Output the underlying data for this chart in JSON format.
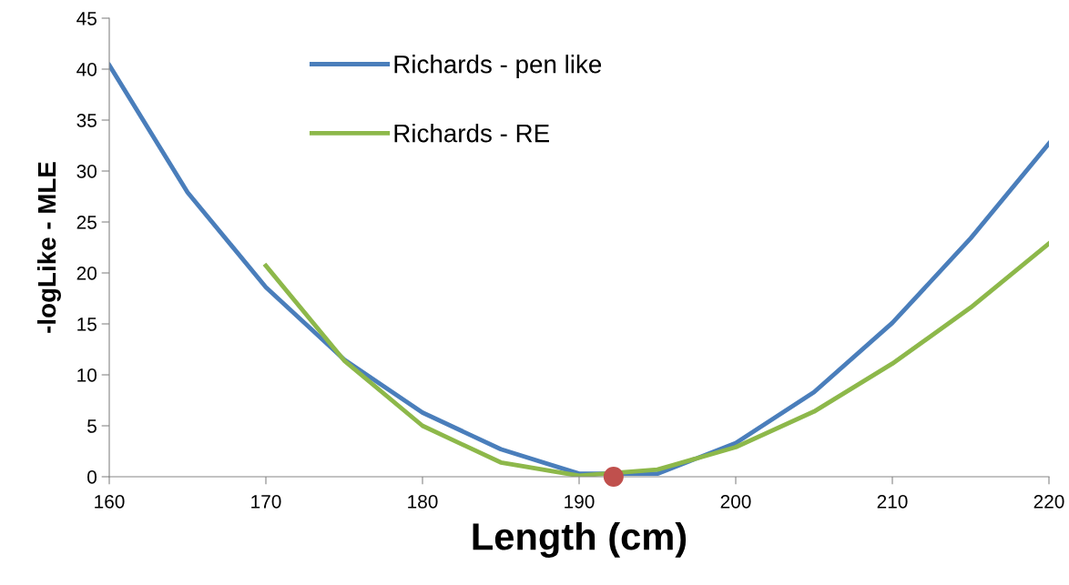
{
  "chart_data": {
    "type": "line",
    "xlabel": "Length (cm)",
    "ylabel": "-logLike - MLE",
    "xlim": [
      160,
      220
    ],
    "xticks": [
      160,
      170,
      180,
      190,
      200,
      210,
      220
    ],
    "ylim": [
      0,
      45
    ],
    "yticks": [
      0,
      5,
      10,
      15,
      20,
      25,
      30,
      35,
      40,
      45
    ],
    "grid": false,
    "legend": "top",
    "marker": "none",
    "line_style": "solid",
    "series": [
      {
        "name": "Richards - pen like",
        "color": "#4a7ebb",
        "x": [
          160,
          165,
          170,
          175,
          180,
          185,
          190,
          195,
          200,
          205,
          210,
          215,
          220
        ],
        "values": [
          40.4,
          27.9,
          18.6,
          11.5,
          6.3,
          2.7,
          0.3,
          0.3,
          3.3,
          8.3,
          15.1,
          23.4,
          32.7
        ]
      },
      {
        "name": "Richards - RE",
        "color": "#8db84a",
        "x": [
          170,
          175,
          180,
          185,
          190,
          195,
          200,
          205,
          210,
          215,
          220
        ],
        "values": [
          20.7,
          11.4,
          5.0,
          1.4,
          0.1,
          0.7,
          2.9,
          6.4,
          11.1,
          16.6,
          22.9
        ]
      },
      {
        "type": "scatter",
        "color": "#c0504d",
        "x": [
          192.2
        ],
        "values": [
          0
        ],
        "marker": "circle"
      }
    ]
  }
}
